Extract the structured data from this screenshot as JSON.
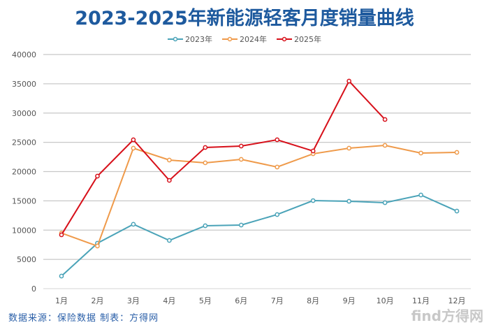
{
  "chart_data": {
    "type": "line",
    "title": "2023-2025年新能源轻客月度销量曲线",
    "categories": [
      "1月",
      "2月",
      "3月",
      "4月",
      "5月",
      "6月",
      "7月",
      "8月",
      "9月",
      "10月",
      "11月",
      "12月"
    ],
    "ylim": [
      0,
      40000
    ],
    "yticks": [
      0,
      5000,
      10000,
      15000,
      20000,
      25000,
      30000,
      35000,
      40000
    ],
    "grid": true,
    "legend_position": "top-center",
    "series": [
      {
        "name": "2023年",
        "color": "#4aa3b8",
        "values": [
          2150,
          7760,
          11000,
          8240,
          10750,
          10870,
          12660,
          15040,
          14930,
          14690,
          16000,
          13250
        ]
      },
      {
        "name": "2024年",
        "color": "#ef9a4a",
        "values": [
          9500,
          7280,
          24000,
          21970,
          21500,
          22090,
          20780,
          23040,
          24000,
          24480,
          23160,
          23280
        ]
      },
      {
        "name": "2025年",
        "color": "#d7101a",
        "values": [
          9200,
          19220,
          25430,
          18500,
          24120,
          24360,
          25430,
          23520,
          35460,
          28900,
          null,
          null
        ]
      }
    ]
  },
  "footer": {
    "source": "数据来源：保险数据 制表：方得网",
    "watermark": "find方得网"
  }
}
